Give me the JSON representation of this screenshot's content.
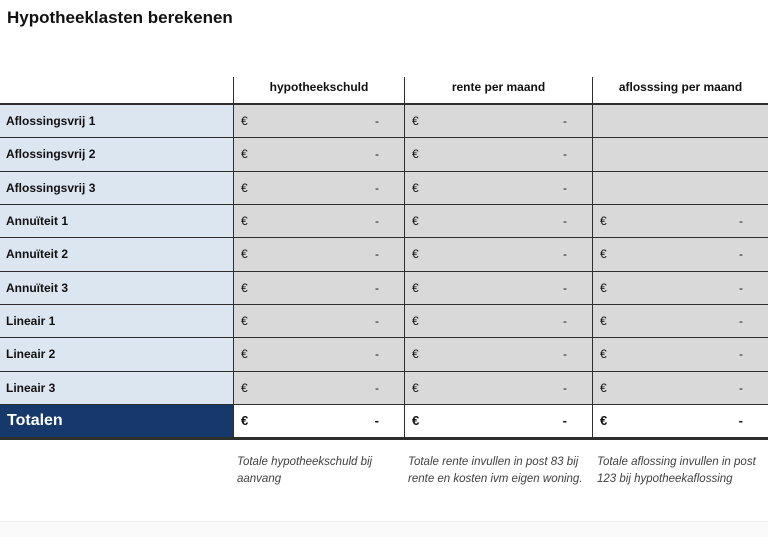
{
  "title": "Hypotheeklasten berekenen",
  "table": {
    "currency_symbol": "€",
    "empty_value": "-",
    "columns": [
      {
        "label": "hypotheekschuld"
      },
      {
        "label": "rente per maand"
      },
      {
        "label": "aflosssing per maand"
      }
    ],
    "rows": [
      {
        "label": "Aflossingsvrij 1",
        "cells": [
          true,
          true,
          false
        ]
      },
      {
        "label": "Aflossingsvrij 2",
        "cells": [
          true,
          true,
          false
        ]
      },
      {
        "label": "Aflossingsvrij 3",
        "cells": [
          true,
          true,
          false
        ]
      },
      {
        "label": "Annuïteit 1",
        "cells": [
          true,
          true,
          true
        ]
      },
      {
        "label": "Annuïteit 2",
        "cells": [
          true,
          true,
          true
        ]
      },
      {
        "label": "Annuïteit 3",
        "cells": [
          true,
          true,
          true
        ]
      },
      {
        "label": "Lineair 1",
        "cells": [
          true,
          true,
          true
        ]
      },
      {
        "label": "Lineair 2",
        "cells": [
          true,
          true,
          true
        ]
      },
      {
        "label": "Lineair 3",
        "cells": [
          true,
          true,
          true
        ]
      }
    ],
    "total_row": {
      "label": "Totalen"
    }
  },
  "notes": [
    "Totale hypotheekschuld bij aanvang",
    "Totale rente invullen in post 83 bij rente en kosten ivm eigen woning.",
    "Totale aflossing invullen in post 123 bij hypotheekaflossing"
  ],
  "colors": {
    "header_navy": "#16386b",
    "label_blue": "#dce6f1",
    "cell_gray": "#d9d9d9",
    "border_dark": "#2e2e2e"
  }
}
